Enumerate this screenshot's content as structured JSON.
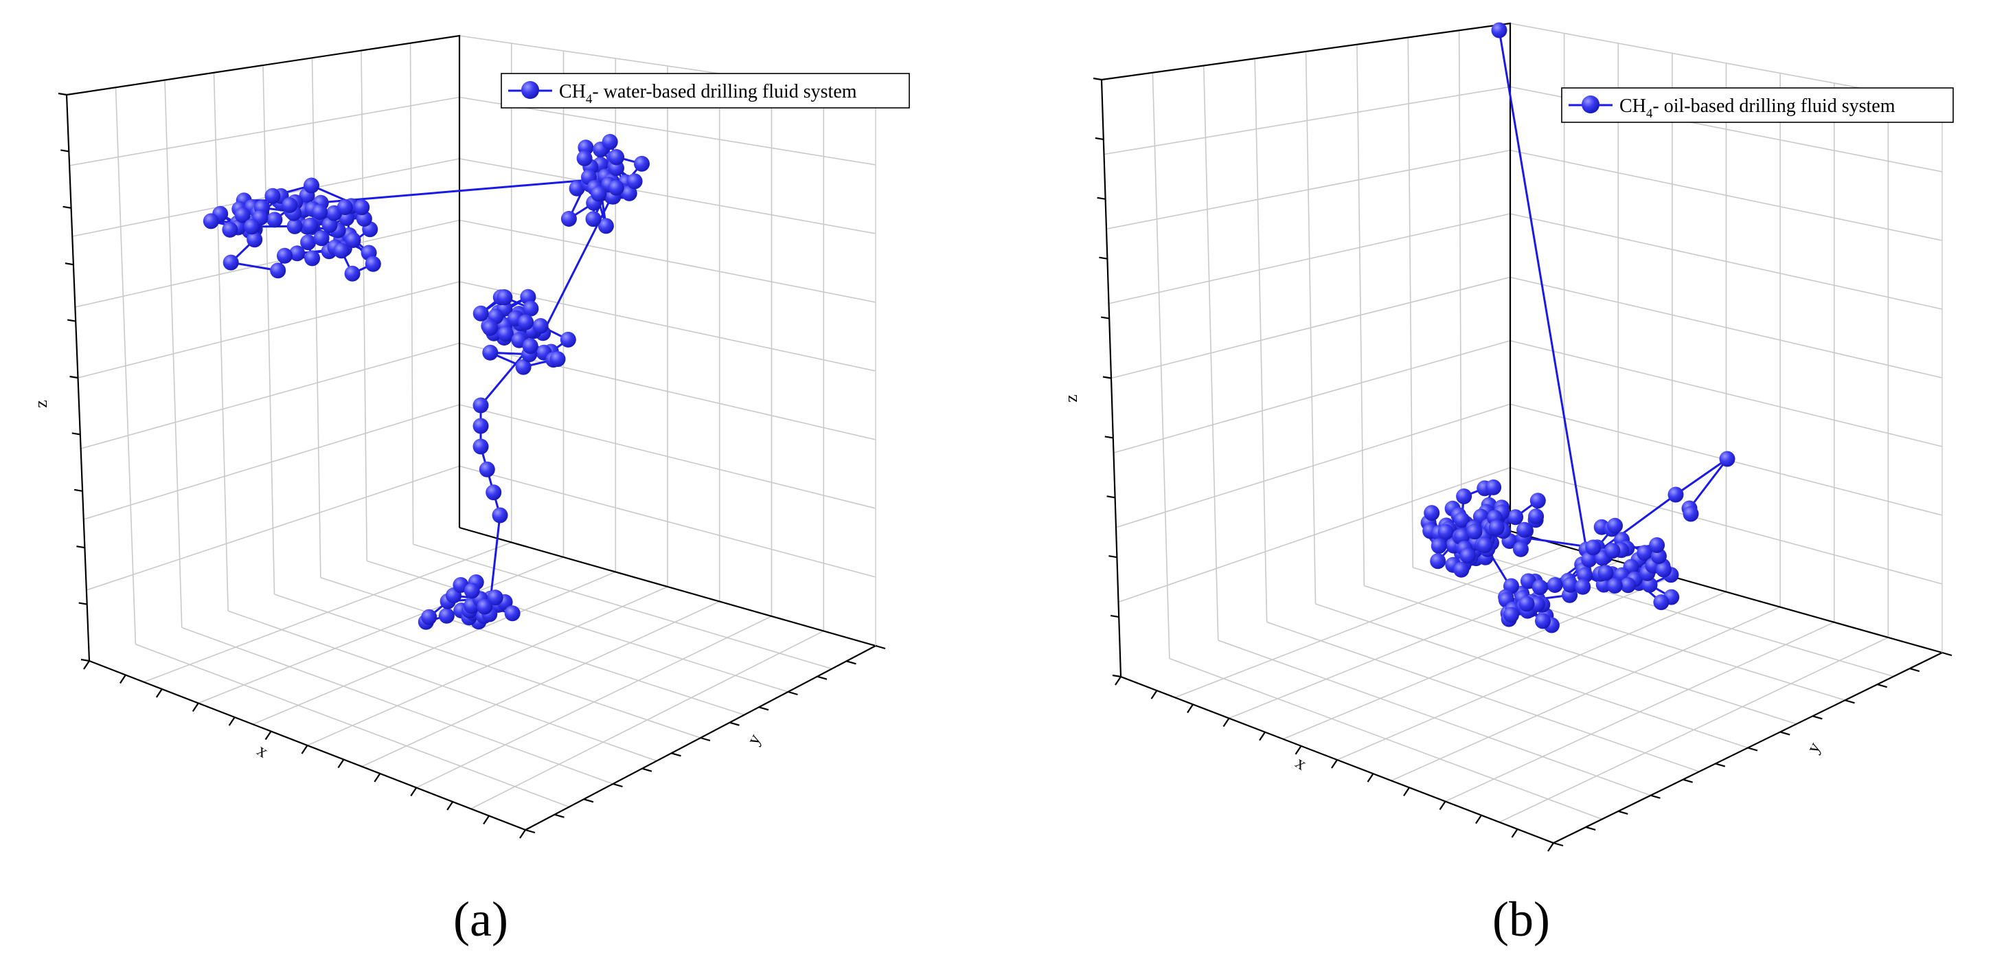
{
  "colors": {
    "series": "#1a1ae6",
    "marker_light": "#9a9aff",
    "marker_dark": "#1515c8",
    "grid": "#c9c9c9"
  },
  "chart_data": [
    {
      "type": "scatter",
      "panel_label": "(a)",
      "axis_labels": {
        "x": "x",
        "y": "y",
        "z": "z"
      },
      "legend": {
        "main": "CH",
        "sub": "4",
        "rest": "- water-based drilling fluid system",
        "placement": "top-right"
      },
      "grid": true,
      "series": [
        {
          "name": "CH4- water-based drilling fluid system",
          "style": "line+sphere markers",
          "x": [],
          "y": [],
          "z": []
        }
      ]
    },
    {
      "type": "scatter",
      "panel_label": "(b)",
      "axis_labels": {
        "x": "x",
        "y": "y",
        "z": "z"
      },
      "legend": {
        "main": "CH",
        "sub": "4",
        "rest": "- oil-based drilling fluid system",
        "placement": "top-right"
      },
      "grid": true,
      "series": [
        {
          "name": "CH4- oil-based drilling fluid system",
          "style": "line+sphere markers",
          "x": [],
          "y": [],
          "z": []
        }
      ]
    }
  ]
}
